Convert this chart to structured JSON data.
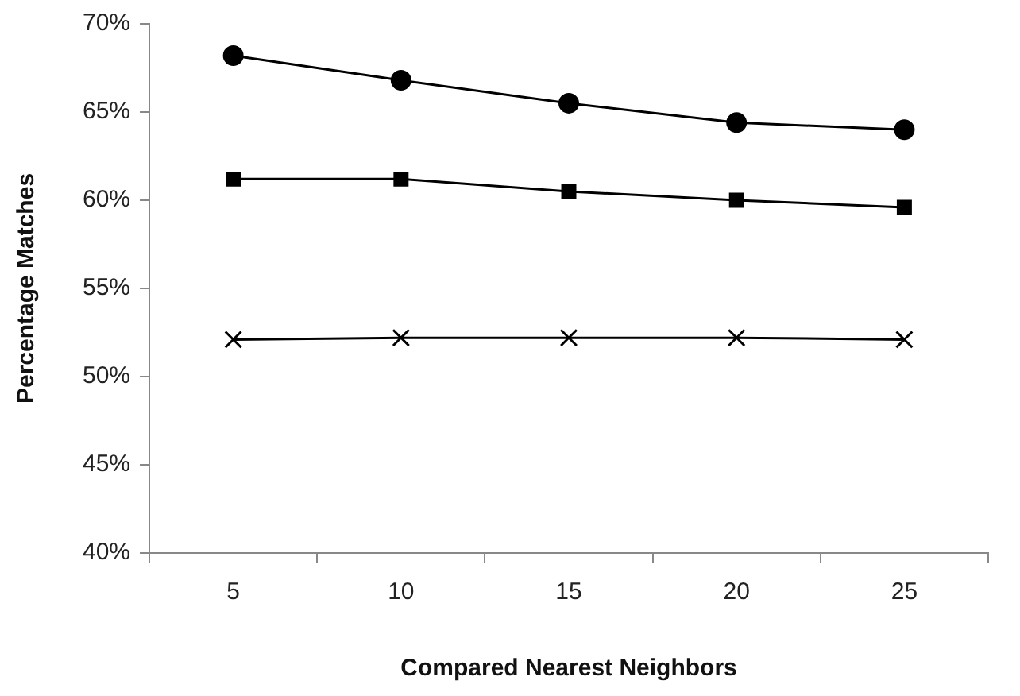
{
  "chart_data": {
    "type": "line",
    "xlabel": "Compared Nearest Neighbors",
    "ylabel": "Percentage Matches",
    "categories": [
      "5",
      "10",
      "15",
      "20",
      "25"
    ],
    "series": [
      {
        "color": "#000000",
        "marker": "circle",
        "values": [
          68.2,
          66.8,
          65.5,
          64.4,
          64.0
        ]
      },
      {
        "color": "#000000",
        "marker": "square",
        "values": [
          61.2,
          61.2,
          60.5,
          60.0,
          59.6
        ]
      },
      {
        "color": "#000000",
        "marker": "cross",
        "values": [
          52.1,
          52.2,
          52.2,
          52.2,
          52.1
        ]
      }
    ],
    "ylim": [
      40,
      70
    ],
    "yticks": [
      {
        "value": 40,
        "label": "40%"
      },
      {
        "value": 45,
        "label": "45%"
      },
      {
        "value": 50,
        "label": "50%"
      },
      {
        "value": 55,
        "label": "55%"
      },
      {
        "value": 60,
        "label": "60%"
      },
      {
        "value": 65,
        "label": "65%"
      },
      {
        "value": 70,
        "label": "70%"
      }
    ],
    "grid": false,
    "legend": false,
    "line_style": "solid"
  }
}
